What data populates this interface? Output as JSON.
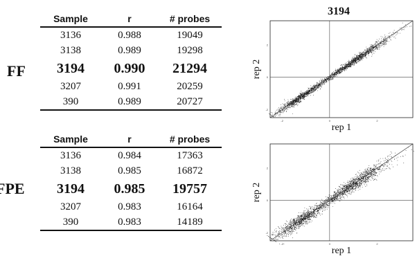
{
  "panels": [
    {
      "group": "FF",
      "columns": [
        "Sample",
        "r",
        "# probes"
      ],
      "rows": [
        {
          "sample": "3136",
          "r": "0.988",
          "probes": "19049"
        },
        {
          "sample": "3138",
          "r": "0.989",
          "probes": "19298"
        },
        {
          "sample": "3194",
          "r": "0.990",
          "probes": "21294"
        },
        {
          "sample": "3207",
          "r": "0.991",
          "probes": "20259"
        },
        {
          "sample": "390",
          "r": "0.989",
          "probes": "20727"
        }
      ],
      "highlight_row": 2,
      "plot": {
        "title": "3194",
        "xlabel": "rep 1",
        "ylabel": "rep 2",
        "x_ticks": [
          "-2",
          "0",
          "2"
        ],
        "y_ticks": [
          "-2",
          "0",
          "2"
        ],
        "xlim": [
          -2.5,
          3.5
        ],
        "ylim": [
          -2.5,
          3.5
        ]
      }
    },
    {
      "group": "FPE",
      "columns": [
        "Sample",
        "r",
        "# probes"
      ],
      "rows": [
        {
          "sample": "3136",
          "r": "0.984",
          "probes": "17363"
        },
        {
          "sample": "3138",
          "r": "0.985",
          "probes": "16872"
        },
        {
          "sample": "3194",
          "r": "0.985",
          "probes": "19757"
        },
        {
          "sample": "3207",
          "r": "0.983",
          "probes": "16164"
        },
        {
          "sample": "390",
          "r": "0.983",
          "probes": "14189"
        }
      ],
      "highlight_row": 2,
      "plot": {
        "title": "",
        "xlabel": "rep 1",
        "ylabel": "rep 2",
        "x_ticks": [
          "-2",
          "0",
          "2"
        ],
        "y_ticks": [
          "-2",
          "0",
          "2"
        ],
        "xlim": [
          -2.5,
          3.5
        ],
        "ylim": [
          -2.5,
          3.5
        ]
      }
    }
  ]
}
